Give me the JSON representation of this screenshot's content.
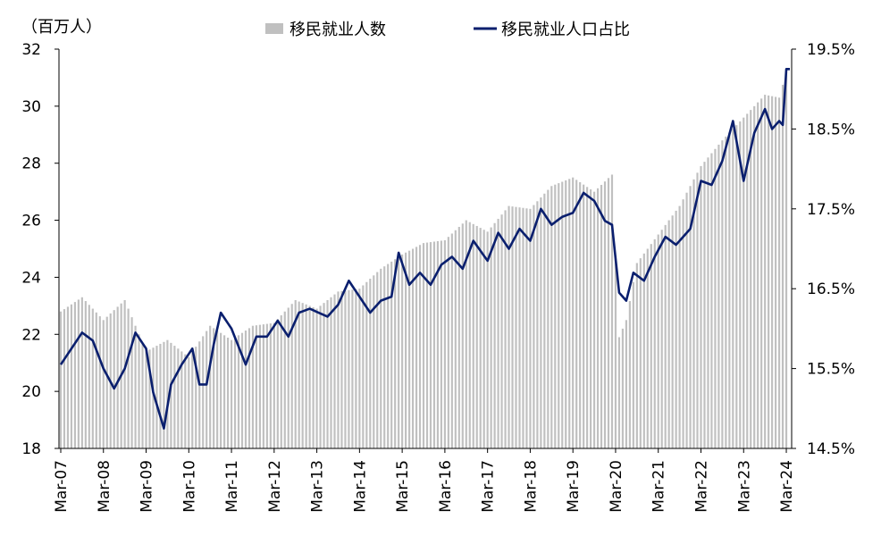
{
  "chart_data": {
    "type": "bar+line",
    "left_unit_label": "（百万人）",
    "left_axis": {
      "min": 18,
      "max": 32,
      "ticks": [
        "18",
        "20",
        "22",
        "24",
        "26",
        "28",
        "30",
        "32"
      ]
    },
    "right_axis": {
      "min": 14.5,
      "max": 19.5,
      "ticks": [
        "14.5%",
        "15.5%",
        "16.5%",
        "17.5%",
        "18.5%",
        "19.5%"
      ]
    },
    "x_tick_labels": [
      "Mar-07",
      "Mar-08",
      "Mar-09",
      "Mar-10",
      "Mar-11",
      "Mar-12",
      "Mar-13",
      "Mar-14",
      "Mar-15",
      "Mar-16",
      "Mar-17",
      "Mar-18",
      "Mar-19",
      "Mar-20",
      "Mar-21",
      "Mar-22",
      "Mar-23",
      "Mar-24"
    ],
    "legend": [
      {
        "label": "移民就业人数",
        "kind": "bar",
        "color": "#c0c0c0"
      },
      {
        "label": "移民就业人口占比",
        "kind": "line",
        "color": "#0a1f6e"
      }
    ],
    "bar_series": {
      "name": "移民就业人数",
      "axis": "left",
      "color": "#c0c0c0",
      "anchors": [
        [
          "2007-03",
          22.8
        ],
        [
          "2007-09",
          23.3
        ],
        [
          "2008-03",
          22.5
        ],
        [
          "2008-09",
          23.2
        ],
        [
          "2009-03",
          21.4
        ],
        [
          "2009-09",
          21.8
        ],
        [
          "2010-03",
          21.2
        ],
        [
          "2010-09",
          22.3
        ],
        [
          "2011-03",
          21.8
        ],
        [
          "2011-09",
          22.3
        ],
        [
          "2012-03",
          22.4
        ],
        [
          "2012-09",
          23.2
        ],
        [
          "2013-03",
          22.9
        ],
        [
          "2013-09",
          23.5
        ],
        [
          "2014-03",
          23.6
        ],
        [
          "2014-09",
          24.3
        ],
        [
          "2015-03",
          24.8
        ],
        [
          "2015-09",
          25.2
        ],
        [
          "2016-03",
          25.3
        ],
        [
          "2016-09",
          26.0
        ],
        [
          "2017-03",
          25.6
        ],
        [
          "2017-09",
          26.5
        ],
        [
          "2018-03",
          26.4
        ],
        [
          "2018-09",
          27.2
        ],
        [
          "2019-03",
          27.5
        ],
        [
          "2019-09",
          27.0
        ],
        [
          "2020-02",
          27.6
        ],
        [
          "2020-04",
          21.9
        ],
        [
          "2020-06",
          22.5
        ],
        [
          "2020-09",
          24.5
        ],
        [
          "2021-03",
          25.5
        ],
        [
          "2021-09",
          26.5
        ],
        [
          "2022-03",
          27.9
        ],
        [
          "2022-09",
          28.8
        ],
        [
          "2023-03",
          29.6
        ],
        [
          "2023-09",
          30.4
        ],
        [
          "2024-01",
          30.3
        ],
        [
          "2024-03",
          31.2
        ]
      ]
    },
    "line_series": {
      "name": "移民就业人口占比",
      "axis": "right",
      "color": "#0a1f6e",
      "anchors": [
        [
          "2007-03",
          15.55
        ],
        [
          "2007-06",
          15.75
        ],
        [
          "2007-09",
          15.95
        ],
        [
          "2007-12",
          15.85
        ],
        [
          "2008-03",
          15.5
        ],
        [
          "2008-06",
          15.25
        ],
        [
          "2008-09",
          15.5
        ],
        [
          "2008-12",
          15.95
        ],
        [
          "2009-03",
          15.75
        ],
        [
          "2009-05",
          15.2
        ],
        [
          "2009-08",
          14.75
        ],
        [
          "2009-10",
          15.3
        ],
        [
          "2010-01",
          15.55
        ],
        [
          "2010-04",
          15.75
        ],
        [
          "2010-06",
          15.3
        ],
        [
          "2010-08",
          15.3
        ],
        [
          "2010-10",
          15.8
        ],
        [
          "2010-12",
          16.2
        ],
        [
          "2011-03",
          16.0
        ],
        [
          "2011-07",
          15.55
        ],
        [
          "2011-10",
          15.9
        ],
        [
          "2012-01",
          15.9
        ],
        [
          "2012-04",
          16.1
        ],
        [
          "2012-07",
          15.9
        ],
        [
          "2012-10",
          16.2
        ],
        [
          "2013-01",
          16.25
        ],
        [
          "2013-06",
          16.15
        ],
        [
          "2013-09",
          16.3
        ],
        [
          "2013-12",
          16.6
        ],
        [
          "2014-03",
          16.4
        ],
        [
          "2014-06",
          16.2
        ],
        [
          "2014-09",
          16.35
        ],
        [
          "2014-12",
          16.4
        ],
        [
          "2015-02",
          16.95
        ],
        [
          "2015-05",
          16.55
        ],
        [
          "2015-08",
          16.7
        ],
        [
          "2015-11",
          16.55
        ],
        [
          "2016-02",
          16.8
        ],
        [
          "2016-05",
          16.9
        ],
        [
          "2016-08",
          16.75
        ],
        [
          "2016-11",
          17.1
        ],
        [
          "2017-03",
          16.85
        ],
        [
          "2017-06",
          17.2
        ],
        [
          "2017-09",
          17.0
        ],
        [
          "2017-12",
          17.25
        ],
        [
          "2018-03",
          17.1
        ],
        [
          "2018-06",
          17.5
        ],
        [
          "2018-09",
          17.3
        ],
        [
          "2018-12",
          17.4
        ],
        [
          "2019-03",
          17.45
        ],
        [
          "2019-06",
          17.7
        ],
        [
          "2019-09",
          17.6
        ],
        [
          "2019-12",
          17.35
        ],
        [
          "2020-02",
          17.3
        ],
        [
          "2020-04",
          16.45
        ],
        [
          "2020-06",
          16.35
        ],
        [
          "2020-08",
          16.7
        ],
        [
          "2020-11",
          16.6
        ],
        [
          "2021-02",
          16.9
        ],
        [
          "2021-05",
          17.15
        ],
        [
          "2021-08",
          17.05
        ],
        [
          "2021-12",
          17.25
        ],
        [
          "2022-03",
          17.85
        ],
        [
          "2022-06",
          17.8
        ],
        [
          "2022-09",
          18.1
        ],
        [
          "2022-12",
          18.6
        ],
        [
          "2023-03",
          17.85
        ],
        [
          "2023-06",
          18.45
        ],
        [
          "2023-09",
          18.75
        ],
        [
          "2023-11",
          18.5
        ],
        [
          "2024-01",
          18.6
        ],
        [
          "2024-02",
          18.55
        ],
        [
          "2024-03",
          19.25
        ],
        [
          "2024-04",
          19.25
        ]
      ]
    }
  }
}
